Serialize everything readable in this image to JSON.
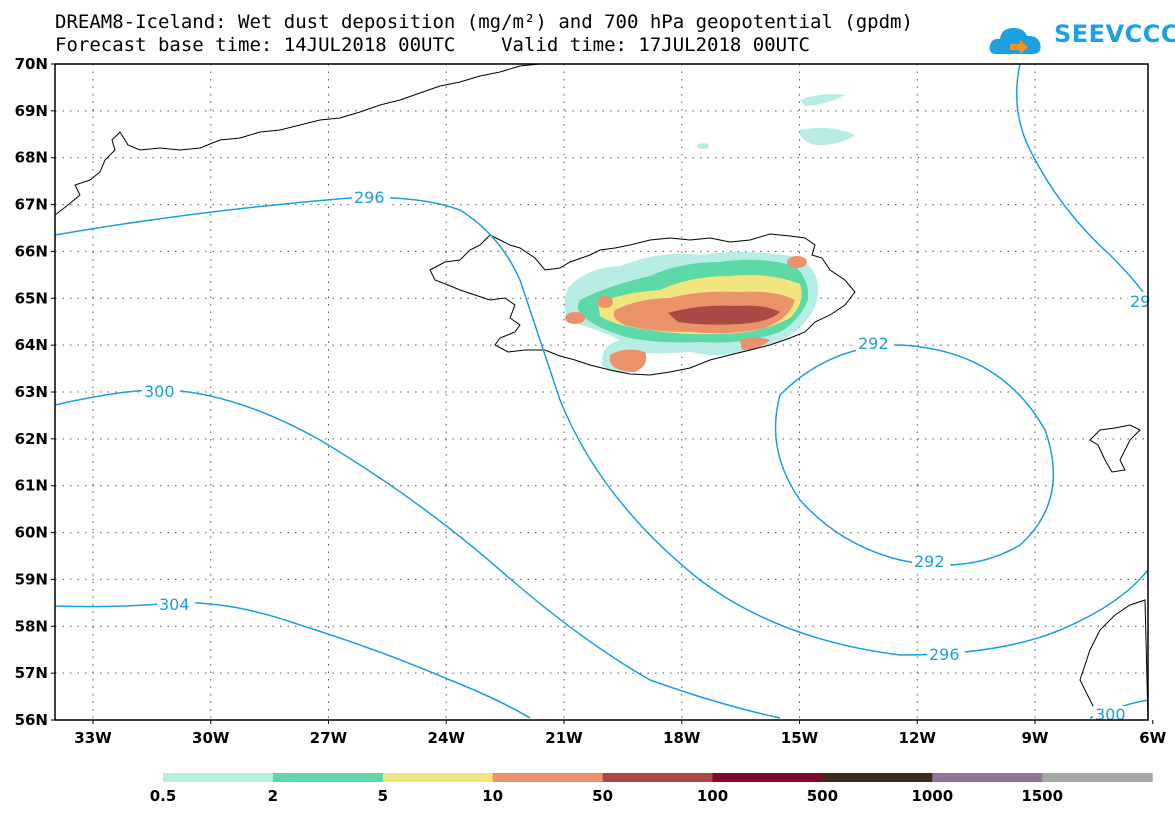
{
  "title": {
    "line1": "DREAM8-Iceland: Wet dust deposition (mg/m²) and 700 hPa geopotential (gpdm)",
    "line2": "Forecast base time: 14JUL2018 00UTC    Valid time: 17JUL2018 00UTC"
  },
  "logo": {
    "text": "SEEVCCC",
    "icon": "cloud-arrow-icon",
    "color": "#1da1e2"
  },
  "map": {
    "lat_labels": [
      "70N",
      "69N",
      "68N",
      "67N",
      "66N",
      "65N",
      "64N",
      "63N",
      "62N",
      "61N",
      "60N",
      "59N",
      "58N",
      "57N",
      "56N"
    ],
    "lon_labels": [
      "33W",
      "30W",
      "27W",
      "24W",
      "21W",
      "18W",
      "15W",
      "12W",
      "9W",
      "6W"
    ],
    "contour_color": "#1a9ee6",
    "contour_labels": [
      "296",
      "300",
      "304",
      "292",
      "292",
      "296",
      "300",
      "29"
    ]
  },
  "colorbar": {
    "colors": [
      "#b8ede6",
      "#5cd9a6",
      "#f2e57d",
      "#ea936b",
      "#a84a45",
      "#7f0a27",
      "#3d2a1a",
      "#96729a",
      "#a6a6a6"
    ],
    "labels": [
      "0.5",
      "2",
      "5",
      "10",
      "50",
      "100",
      "500",
      "1000",
      "1500"
    ]
  }
}
